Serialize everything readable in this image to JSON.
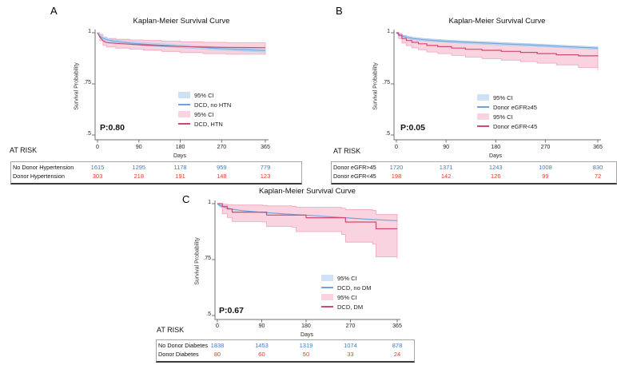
{
  "colors": {
    "group1_line": "#6fa3dc",
    "group1_fill": "#cfe2f5",
    "group1_band_edge": "#aecbea",
    "group2_line": "#d04a70",
    "group2_fill": "#f9d3df",
    "group2_band_edge": "#f0a3c0",
    "risk_value_group1": "#3b7bbf",
    "risk_value_group2": "#e8392f",
    "axis": "#707070",
    "text": "#111111"
  },
  "panels": [
    {
      "letter": "A",
      "title": "Kaplan-Meier Survival Curve",
      "ylabel": "Survival Probability",
      "xlabel": "Days",
      "p_value": "P:0.80",
      "at_risk_label": "AT RISK",
      "legend": [
        {
          "swatch": "fill",
          "group": "group1",
          "label": "95% CI"
        },
        {
          "swatch": "line",
          "group": "group1",
          "label": "DCD, no HTN"
        },
        {
          "swatch": "fill",
          "group": "group2",
          "label": "95% CI"
        },
        {
          "swatch": "line",
          "group": "group2",
          "label": "DCD, HTN"
        }
      ],
      "risk_table": {
        "rows": [
          {
            "label": "No Donor Hypertension",
            "group": "group1",
            "values": [
              "1615",
              "1295",
              "1178",
              "959",
              "779"
            ]
          },
          {
            "label": "Donor Hypertension",
            "group": "group2",
            "values": [
              "303",
              "218",
              "191",
              "148",
              "123"
            ]
          }
        ]
      }
    },
    {
      "letter": "B",
      "title": "Kaplan-Meier Survival Curve",
      "ylabel": "Survival Probability",
      "xlabel": "Days",
      "p_value": "P:0.05",
      "at_risk_label": "AT RISK",
      "legend": [
        {
          "swatch": "fill",
          "group": "group1",
          "label": "95% CI"
        },
        {
          "swatch": "line",
          "group": "group1",
          "label": "Donor eGFR≥45"
        },
        {
          "swatch": "fill",
          "group": "group2",
          "label": "95% CI"
        },
        {
          "swatch": "line",
          "group": "group2",
          "label": "Donor eGFR<45"
        }
      ],
      "risk_table": {
        "rows": [
          {
            "label": "Donor eGFR>45",
            "group": "group1",
            "values": [
              "1720",
              "1371",
              "1243",
              "1008",
              "830"
            ]
          },
          {
            "label": "Donor eGFR<45",
            "group": "group2",
            "values": [
              "198",
              "142",
              "126",
              "99",
              "72"
            ]
          }
        ]
      }
    },
    {
      "letter": "C",
      "title": "Kaplan-Meier Survival Curve",
      "ylabel": "Survival Probability",
      "xlabel": "Days",
      "p_value": "P:0.67",
      "at_risk_label": "AT RISK",
      "legend": [
        {
          "swatch": "fill",
          "group": "group1",
          "label": "95% CI"
        },
        {
          "swatch": "line",
          "group": "group1",
          "label": "DCD, no DM"
        },
        {
          "swatch": "fill",
          "group": "group2",
          "label": "95% CI"
        },
        {
          "swatch": "line",
          "group": "group2",
          "label": "DCD, DM"
        }
      ],
      "risk_table": {
        "rows": [
          {
            "label": "No Donor Diabetes",
            "group": "group1",
            "values": [
              "1838",
              "1453",
              "1319",
              "1074",
              "878"
            ]
          },
          {
            "label": "Donor Diabetes",
            "group": "group2",
            "values": [
              "80",
              "60",
              "50",
              "33",
              "24"
            ]
          }
        ]
      }
    }
  ],
  "chart_data": [
    {
      "type": "line",
      "panel": "A",
      "title": "Kaplan-Meier Survival Curve",
      "xlabel": "Days",
      "ylabel": "Survival Probability",
      "x_range": [
        0,
        365
      ],
      "y_range": [
        0.5,
        1.0
      ],
      "xticks": [
        0,
        90,
        180,
        270,
        365
      ],
      "yticks": [
        {
          "label": "1",
          "value": 1
        },
        {
          "label": ".75",
          "value": 0.75
        },
        {
          "label": ".5",
          "value": 0.5
        }
      ],
      "p_value_text": "P:0.80",
      "legend_entries": [
        "95% CI",
        "DCD, no HTN",
        "95% CI",
        "DCD, HTN"
      ],
      "bands": [
        {
          "name": "95% CI, DCD, HTN",
          "group": "group2",
          "step": true,
          "x": [
            0,
            5,
            12,
            20,
            40,
            70,
            100,
            140,
            180,
            230,
            280,
            365
          ],
          "upper": [
            1,
            0.992,
            0.978,
            0.972,
            0.968,
            0.965,
            0.962,
            0.959,
            0.956,
            0.953,
            0.951,
            0.95
          ],
          "lower": [
            1,
            0.962,
            0.938,
            0.93,
            0.925,
            0.92,
            0.915,
            0.909,
            0.903,
            0.898,
            0.895,
            0.893
          ]
        },
        {
          "name": "95% CI, DCD, no HTN",
          "group": "group1",
          "step": false,
          "x": [
            0,
            4,
            10,
            20,
            35,
            55,
            80,
            110,
            140,
            180,
            220,
            260,
            310,
            365
          ],
          "upper": [
            1,
            0.993,
            0.982,
            0.973,
            0.966,
            0.96,
            0.955,
            0.95,
            0.946,
            0.941,
            0.936,
            0.93,
            0.925,
            0.92
          ],
          "lower": [
            1,
            0.979,
            0.968,
            0.959,
            0.952,
            0.946,
            0.941,
            0.936,
            0.932,
            0.927,
            0.922,
            0.916,
            0.911,
            0.906
          ]
        }
      ],
      "series": [
        {
          "name": "DCD, no HTN",
          "group": "group1",
          "step": false,
          "x": [
            0,
            4,
            10,
            20,
            35,
            55,
            80,
            110,
            140,
            180,
            220,
            260,
            310,
            365
          ],
          "y": [
            1,
            0.986,
            0.975,
            0.966,
            0.959,
            0.953,
            0.948,
            0.943,
            0.939,
            0.934,
            0.929,
            0.923,
            0.918,
            0.913
          ]
        },
        {
          "name": "DCD, HTN",
          "group": "group2",
          "step": false,
          "x": [
            0,
            5,
            12,
            20,
            40,
            70,
            100,
            140,
            180,
            230,
            280,
            365
          ],
          "y": [
            1,
            0.98,
            0.96,
            0.952,
            0.948,
            0.944,
            0.94,
            0.936,
            0.933,
            0.93,
            0.928,
            0.927
          ]
        }
      ]
    },
    {
      "type": "line",
      "panel": "B",
      "title": "Kaplan-Meier Survival Curve",
      "xlabel": "Days",
      "ylabel": "Survival Probability",
      "x_range": [
        0,
        365
      ],
      "y_range": [
        0.5,
        1.0
      ],
      "xticks": [
        0,
        90,
        180,
        270,
        365
      ],
      "yticks": [
        {
          "label": "1",
          "value": 1
        },
        {
          "label": ".75",
          "value": 0.75
        },
        {
          "label": ".5",
          "value": 0.5
        }
      ],
      "p_value_text": "P:0.05",
      "legend_entries": [
        "95% CI",
        "Donor eGFR≥45",
        "95% CI",
        "Donor eGFR<45"
      ],
      "bands": [
        {
          "name": "95% CI, Donor eGFR<45",
          "group": "group2",
          "step": true,
          "x": [
            0,
            4,
            10,
            18,
            28,
            40,
            55,
            75,
            100,
            125,
            155,
            190,
            225,
            255,
            290,
            330,
            365
          ],
          "upper": [
            1,
            0.996,
            0.987,
            0.98,
            0.974,
            0.969,
            0.963,
            0.958,
            0.953,
            0.948,
            0.944,
            0.94,
            0.936,
            0.932,
            0.928,
            0.925,
            0.924
          ],
          "lower": [
            1,
            0.972,
            0.95,
            0.937,
            0.926,
            0.917,
            0.906,
            0.898,
            0.889,
            0.881,
            0.873,
            0.866,
            0.859,
            0.851,
            0.843,
            0.83,
            0.815
          ]
        },
        {
          "name": "95% CI, Donor eGFR≥45",
          "group": "group1",
          "step": false,
          "x": [
            0,
            5,
            15,
            30,
            50,
            75,
            100,
            130,
            160,
            190,
            225,
            260,
            300,
            365
          ],
          "upper": [
            1,
            0.996,
            0.986,
            0.978,
            0.972,
            0.967,
            0.963,
            0.959,
            0.956,
            0.952,
            0.948,
            0.944,
            0.939,
            0.931
          ],
          "lower": [
            1,
            0.984,
            0.974,
            0.966,
            0.96,
            0.955,
            0.951,
            0.947,
            0.944,
            0.94,
            0.936,
            0.932,
            0.927,
            0.919
          ]
        }
      ],
      "series": [
        {
          "name": "Donor eGFR≥45",
          "group": "group1",
          "step": false,
          "x": [
            0,
            5,
            15,
            30,
            50,
            75,
            100,
            130,
            160,
            190,
            225,
            260,
            300,
            365
          ],
          "y": [
            1,
            0.99,
            0.98,
            0.972,
            0.966,
            0.961,
            0.957,
            0.953,
            0.95,
            0.946,
            0.942,
            0.938,
            0.933,
            0.925
          ]
        },
        {
          "name": "Donor eGFR<45",
          "group": "group2",
          "step": true,
          "x": [
            0,
            4,
            10,
            18,
            28,
            40,
            55,
            75,
            100,
            125,
            155,
            190,
            225,
            255,
            290,
            330,
            365
          ],
          "y": [
            1,
            0.988,
            0.972,
            0.962,
            0.953,
            0.946,
            0.938,
            0.932,
            0.925,
            0.919,
            0.914,
            0.909,
            0.904,
            0.898,
            0.892,
            0.887,
            0.885
          ]
        }
      ]
    },
    {
      "type": "line",
      "panel": "C",
      "title": "Kaplan-Meier Survival Curve",
      "xlabel": "Days",
      "ylabel": "Survival Probability",
      "x_range": [
        0,
        365
      ],
      "y_range": [
        0.5,
        1.0
      ],
      "xticks": [
        0,
        90,
        180,
        270,
        365
      ],
      "yticks": [
        {
          "label": "1",
          "value": 1
        },
        {
          "label": ".75",
          "value": 0.75
        },
        {
          "label": ".5",
          "value": 0.5
        }
      ],
      "p_value_text": "P:0.67",
      "legend_entries": [
        "95% CI",
        "DCD, no DM",
        "95% CI",
        "DCD, DM"
      ],
      "bands": [
        {
          "name": "95% CI, DCD, no DM",
          "group": "group1",
          "step": false,
          "x": [
            0,
            5,
            15,
            30,
            50,
            75,
            100,
            130,
            160,
            190,
            225,
            260,
            300,
            365
          ],
          "upper": [
            1,
            0.998,
            0.989,
            0.981,
            0.975,
            0.97,
            0.966,
            0.961,
            0.957,
            0.953,
            0.948,
            0.943,
            0.937,
            0.93
          ],
          "lower": [
            1,
            0.986,
            0.977,
            0.969,
            0.963,
            0.958,
            0.954,
            0.949,
            0.945,
            0.941,
            0.936,
            0.931,
            0.925,
            0.918
          ]
        },
        {
          "name": "95% CI, DCD, DM",
          "group": "group2",
          "step": true,
          "x": [
            0,
            10,
            20,
            30,
            92,
            100,
            152,
            160,
            252,
            260,
            315,
            322,
            365
          ],
          "upper": [
            1,
            0.998,
            0.996,
            0.994,
            0.992,
            0.99,
            0.988,
            0.984,
            0.98,
            0.974,
            0.97,
            0.952,
            0.95
          ],
          "lower": [
            1,
            0.955,
            0.938,
            0.92,
            0.918,
            0.898,
            0.895,
            0.875,
            0.862,
            0.828,
            0.82,
            0.762,
            0.755
          ]
        }
      ],
      "series": [
        {
          "name": "DCD, no DM",
          "group": "group1",
          "step": false,
          "x": [
            0,
            5,
            15,
            30,
            50,
            75,
            100,
            130,
            160,
            190,
            225,
            260,
            300,
            365
          ],
          "y": [
            1,
            0.992,
            0.983,
            0.975,
            0.969,
            0.964,
            0.96,
            0.955,
            0.951,
            0.947,
            0.942,
            0.937,
            0.931,
            0.924
          ]
        },
        {
          "name": "DCD, DM",
          "group": "group2",
          "step": true,
          "x": [
            0,
            10,
            20,
            30,
            92,
            100,
            172,
            180,
            252,
            260,
            315,
            322,
            365
          ],
          "y": [
            1,
            0.988,
            0.976,
            0.962,
            0.962,
            0.949,
            0.949,
            0.937,
            0.937,
            0.918,
            0.918,
            0.888,
            0.888
          ]
        }
      ]
    }
  ]
}
